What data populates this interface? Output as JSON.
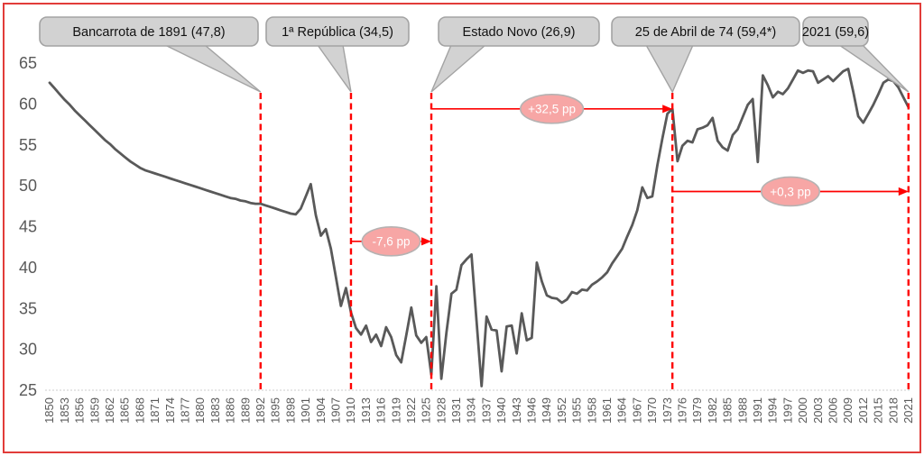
{
  "chart_data": {
    "type": "line",
    "year_start": 1850,
    "year_end": 2021,
    "x_step_years": 1,
    "ylim": [
      25,
      65
    ],
    "y_tick_labels": [
      "25",
      "30",
      "35",
      "40",
      "45",
      "50",
      "55",
      "60",
      "65"
    ],
    "x_tick_labels": [
      "1850",
      "1853",
      "1856",
      "1859",
      "1862",
      "1865",
      "1868",
      "1871",
      "1874",
      "1877",
      "1880",
      "1883",
      "1886",
      "1889",
      "1892",
      "1895",
      "1898",
      "1901",
      "1904",
      "1907",
      "1910",
      "1913",
      "1916",
      "1919",
      "1922",
      "1925",
      "1928",
      "1931",
      "1934",
      "1937",
      "1940",
      "1943",
      "1946",
      "1949",
      "1952",
      "1955",
      "1958",
      "1961",
      "1964",
      "1967",
      "1970",
      "1973",
      "1976",
      "1979",
      "1982",
      "1985",
      "1988",
      "1991",
      "1994",
      "1997",
      "2000",
      "2003",
      "2006",
      "2009",
      "2012",
      "2015",
      "2018",
      "2021"
    ],
    "values": [
      62.6,
      61.9,
      61.2,
      60.5,
      59.9,
      59.2,
      58.6,
      58.0,
      57.4,
      56.8,
      56.2,
      55.6,
      55.1,
      54.5,
      54.0,
      53.5,
      53.0,
      52.6,
      52.2,
      51.9,
      51.7,
      51.5,
      51.3,
      51.1,
      50.9,
      50.7,
      50.5,
      50.3,
      50.1,
      49.9,
      49.7,
      49.5,
      49.3,
      49.1,
      48.9,
      48.7,
      48.5,
      48.4,
      48.2,
      48.1,
      47.9,
      47.8,
      47.8,
      47.6,
      47.4,
      47.2,
      47.0,
      46.8,
      46.6,
      46.5,
      47.2,
      48.7,
      50.2,
      46.4,
      43.9,
      44.7,
      42.3,
      38.8,
      35.3,
      37.5,
      34.5,
      32.6,
      31.8,
      32.9,
      30.9,
      31.8,
      30.4,
      32.7,
      31.5,
      29.3,
      28.4,
      31.7,
      35.1,
      31.7,
      30.8,
      31.5,
      26.9,
      37.7,
      26.4,
      32.0,
      36.8,
      37.3,
      40.3,
      41.0,
      41.6,
      33.5,
      25.5,
      34.0,
      32.4,
      32.3,
      27.3,
      32.8,
      32.9,
      29.5,
      34.4,
      31.1,
      31.4,
      40.6,
      38.3,
      36.6,
      36.3,
      36.2,
      35.7,
      36.1,
      37.0,
      36.8,
      37.3,
      37.2,
      37.9,
      38.3,
      38.8,
      39.4,
      40.5,
      41.4,
      42.3,
      43.8,
      45.2,
      47.0,
      49.8,
      48.5,
      48.7,
      52.5,
      55.8,
      58.8,
      59.4,
      53.0,
      54.9,
      55.5,
      55.3,
      56.9,
      57.1,
      57.4,
      58.3,
      55.5,
      54.7,
      54.3,
      56.2,
      56.9,
      58.4,
      59.9,
      60.6,
      52.9,
      63.5,
      62.3,
      60.8,
      61.5,
      61.2,
      61.9,
      63.0,
      64.1,
      63.8,
      64.1,
      64.0,
      62.6,
      63.0,
      63.4,
      62.8,
      63.4,
      64.0,
      64.3,
      61.5,
      58.5,
      57.7,
      58.8,
      59.9,
      61.2,
      62.6,
      63.0,
      62.8,
      62.0,
      60.8,
      59.6
    ],
    "callouts": [
      {
        "label": "Bancarrota de 1891 (47,8)",
        "year": 1892,
        "value": 47.8
      },
      {
        "label": "1ª República (34,5)",
        "year": 1910,
        "value": 34.5
      },
      {
        "label": "Estado Novo (26,9)",
        "year": 1926,
        "value": 26.9
      },
      {
        "label": "25 de Abril de 74 (59,4*)",
        "year": 1974,
        "value": 59.4
      },
      {
        "label": "2021 (59,6)",
        "year": 2021,
        "value": 59.6
      }
    ],
    "arrows": [
      {
        "label": "-7,6 pp",
        "from_year": 1910,
        "to_year": 1926,
        "at_value": 43.2
      },
      {
        "label": "+32,5 pp",
        "from_year": 1926,
        "to_year": 1974,
        "at_value": 59.4
      },
      {
        "label": "+0,3 pp",
        "from_year": 1974,
        "to_year": 2021,
        "at_value": 49.3
      }
    ],
    "legend": "none",
    "grid": "off"
  },
  "colors": {
    "series_line": "#595959",
    "axis_text": "#595959",
    "baseline": "#d8d8d8",
    "marker_red": "#fe0000",
    "badge_fill": "#f7a6a5",
    "badge_border": "#b5b2b2",
    "badge_text": "#ffffff",
    "callout_fill": "#d2d2d2",
    "callout_border": "#a3a3a3",
    "callout_text": "#111111",
    "frame_border": "#e23c39"
  }
}
